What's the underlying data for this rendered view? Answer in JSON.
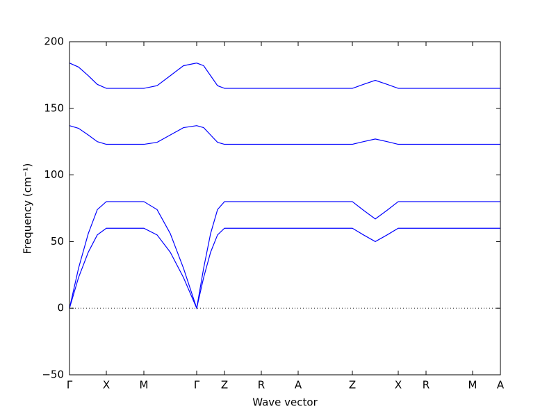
{
  "chart_data": {
    "type": "line",
    "x_label": "Wave vector",
    "y_label": "Frequency (cm⁻¹)",
    "x": [
      0,
      13,
      27,
      40,
      53,
      107,
      126,
      145,
      164,
      183,
      193,
      203,
      213,
      223,
      407,
      423,
      440,
      457,
      473,
      620
    ],
    "series": [
      {
        "color": "#0000ff",
        "values": [
          184,
          181,
          174.5,
          168,
          165,
          165,
          167,
          174.5,
          182,
          184,
          182,
          174.5,
          167,
          165,
          165,
          168,
          171,
          168,
          165,
          165
        ]
      },
      {
        "color": "#0000ff",
        "values": [
          137,
          135,
          130,
          125,
          123,
          123,
          124.5,
          130,
          135.5,
          137,
          135.5,
          130,
          124.5,
          123,
          123,
          125,
          127,
          125,
          123,
          123
        ]
      },
      {
        "color": "#0000ff",
        "values": [
          0,
          30,
          56,
          74,
          80,
          80,
          74,
          56,
          30,
          0,
          30,
          56,
          74,
          80,
          80,
          73.5,
          67,
          73.5,
          80,
          80
        ]
      },
      {
        "color": "#0000ff",
        "values": [
          0,
          23,
          42,
          55,
          60,
          60,
          55,
          42,
          23,
          0,
          23,
          42,
          55,
          60,
          60,
          55,
          50,
          55,
          60,
          60
        ]
      }
    ],
    "xlim": [
      0,
      620
    ],
    "xticks": [
      {
        "value": 0,
        "label": "Γ"
      },
      {
        "value": 53,
        "label": "X"
      },
      {
        "value": 107,
        "label": "M"
      },
      {
        "value": 183,
        "label": "Γ"
      },
      {
        "value": 223,
        "label": "Z"
      },
      {
        "value": 276,
        "label": "R"
      },
      {
        "value": 329,
        "label": "A"
      },
      {
        "value": 407,
        "label": "Z"
      },
      {
        "value": 473,
        "label": "X"
      },
      {
        "value": 513,
        "label": "R"
      },
      {
        "value": 580,
        "label": "M"
      },
      {
        "value": 620,
        "label": "A"
      }
    ],
    "ylim": [
      -50,
      200
    ],
    "yticks": [
      {
        "value": -50,
        "label": "−50"
      },
      0,
      50,
      100,
      150,
      200
    ],
    "zero_line": true
  }
}
